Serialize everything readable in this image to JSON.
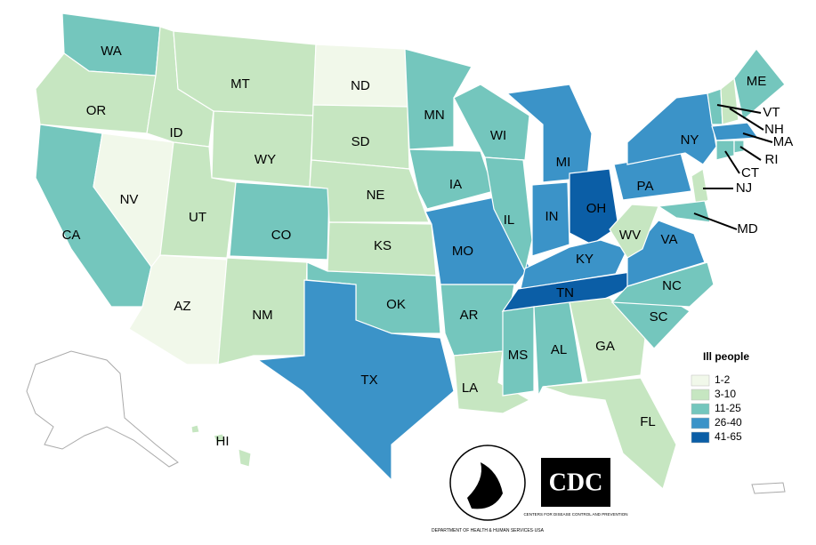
{
  "map": {
    "legend": {
      "title": "Ill people",
      "items": [
        {
          "label": "1-2",
          "color": "#f1f8ea"
        },
        {
          "label": "3-10",
          "color": "#c6e6c1"
        },
        {
          "label": "11-25",
          "color": "#74c6bd"
        },
        {
          "label": "26-40",
          "color": "#3b93c8"
        },
        {
          "label": "41-65",
          "color": "#0b5ea6"
        }
      ]
    },
    "states": [
      {
        "label": "WA",
        "range": "11-25"
      },
      {
        "label": "OR",
        "range": "3-10"
      },
      {
        "label": "CA",
        "range": "11-25"
      },
      {
        "label": "NV",
        "range": "1-2"
      },
      {
        "label": "ID",
        "range": "3-10"
      },
      {
        "label": "MT",
        "range": "3-10"
      },
      {
        "label": "WY",
        "range": "3-10"
      },
      {
        "label": "UT",
        "range": "3-10"
      },
      {
        "label": "AZ",
        "range": "1-2"
      },
      {
        "label": "CO",
        "range": "11-25"
      },
      {
        "label": "NM",
        "range": "3-10"
      },
      {
        "label": "ND",
        "range": "1-2"
      },
      {
        "label": "SD",
        "range": "3-10"
      },
      {
        "label": "NE",
        "range": "3-10"
      },
      {
        "label": "KS",
        "range": "3-10"
      },
      {
        "label": "OK",
        "range": "11-25"
      },
      {
        "label": "TX",
        "range": "26-40"
      },
      {
        "label": "MN",
        "range": "11-25"
      },
      {
        "label": "IA",
        "range": "11-25"
      },
      {
        "label": "MO",
        "range": "26-40"
      },
      {
        "label": "AR",
        "range": "11-25"
      },
      {
        "label": "LA",
        "range": "3-10"
      },
      {
        "label": "WI",
        "range": "11-25"
      },
      {
        "label": "IL",
        "range": "11-25"
      },
      {
        "label": "MI",
        "range": "26-40"
      },
      {
        "label": "IN",
        "range": "26-40"
      },
      {
        "label": "OH",
        "range": "41-65"
      },
      {
        "label": "KY",
        "range": "26-40"
      },
      {
        "label": "TN",
        "range": "41-65"
      },
      {
        "label": "MS",
        "range": "11-25"
      },
      {
        "label": "AL",
        "range": "11-25"
      },
      {
        "label": "GA",
        "range": "3-10"
      },
      {
        "label": "FL",
        "range": "3-10"
      },
      {
        "label": "SC",
        "range": "11-25"
      },
      {
        "label": "NC",
        "range": "11-25"
      },
      {
        "label": "VA",
        "range": "26-40"
      },
      {
        "label": "WV",
        "range": "3-10"
      },
      {
        "label": "PA",
        "range": "26-40"
      },
      {
        "label": "NY",
        "range": "26-40"
      },
      {
        "label": "VT",
        "range": "11-25"
      },
      {
        "label": "NH",
        "range": "3-10"
      },
      {
        "label": "ME",
        "range": "11-25"
      },
      {
        "label": "MA",
        "range": "26-40"
      },
      {
        "label": "CT",
        "range": "11-25"
      },
      {
        "label": "RI",
        "range": "11-25"
      },
      {
        "label": "NJ",
        "range": "3-10"
      },
      {
        "label": "MD",
        "range": "11-25"
      },
      {
        "label": "HI",
        "range": "3-10"
      }
    ],
    "logos": {
      "hhs": "DEPARTMENT OF HEALTH & HUMAN SERVICES·USA",
      "cdc": "CDC",
      "cdc_sub": "CENTERS FOR DISEASE CONTROL AND PREVENTION"
    }
  }
}
